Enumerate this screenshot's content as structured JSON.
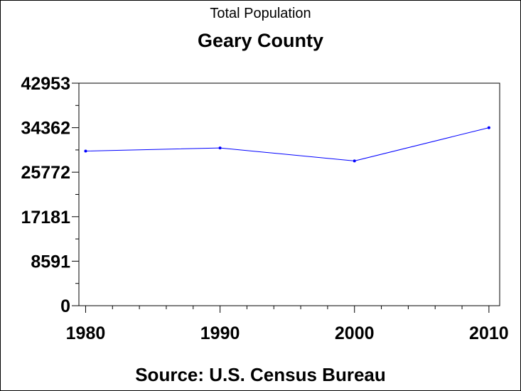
{
  "chart_data": {
    "type": "line",
    "title": "Total Population",
    "subtitle": "Geary County",
    "source": "Source: U.S. Census Bureau",
    "x": [
      1980,
      1990,
      2000,
      2010
    ],
    "x_tick_labels": [
      "1980",
      "1990",
      "2000",
      "2010"
    ],
    "series": [
      {
        "values": [
          29852,
          30453,
          27947,
          34362
        ],
        "color": "#0000ff"
      }
    ],
    "y_ticks": [
      0,
      8591,
      17181,
      25772,
      34362,
      42953
    ],
    "y_tick_labels": [
      "0",
      "8591",
      "17181",
      "25772",
      "34362",
      "42953"
    ],
    "ylim": [
      0,
      42953
    ],
    "xlim": [
      1979.5,
      2010.8
    ],
    "grid": false
  }
}
